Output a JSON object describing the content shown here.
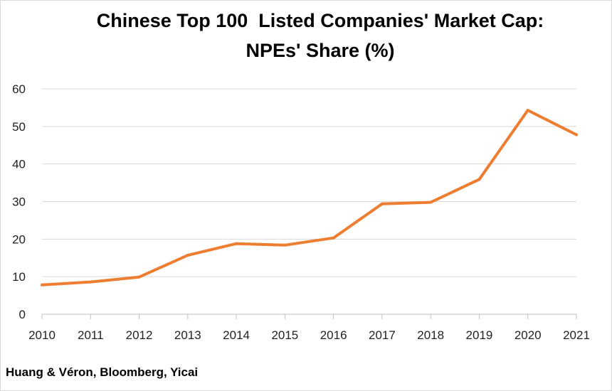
{
  "chart_data": {
    "type": "line",
    "title": [
      "Chinese Top 100  Listed Companies' Market Cap:",
      "NPEs' Share (%)"
    ],
    "x": [
      "2010",
      "2011",
      "2012",
      "2013",
      "2014",
      "2015",
      "2016",
      "2017",
      "2018",
      "2019",
      "2020",
      "2021"
    ],
    "series": [
      {
        "values": [
          7.8,
          8.6,
          9.9,
          15.7,
          18.8,
          18.4,
          20.3,
          29.4,
          29.8,
          35.9,
          54.3,
          47.8
        ]
      }
    ],
    "ylim": [
      0,
      60
    ],
    "yticks": [
      0,
      10,
      20,
      30,
      40,
      50,
      60
    ],
    "grid": true,
    "line_color": "#ED7D31"
  },
  "source": "Huang & Véron, Bloomberg, Yicai"
}
